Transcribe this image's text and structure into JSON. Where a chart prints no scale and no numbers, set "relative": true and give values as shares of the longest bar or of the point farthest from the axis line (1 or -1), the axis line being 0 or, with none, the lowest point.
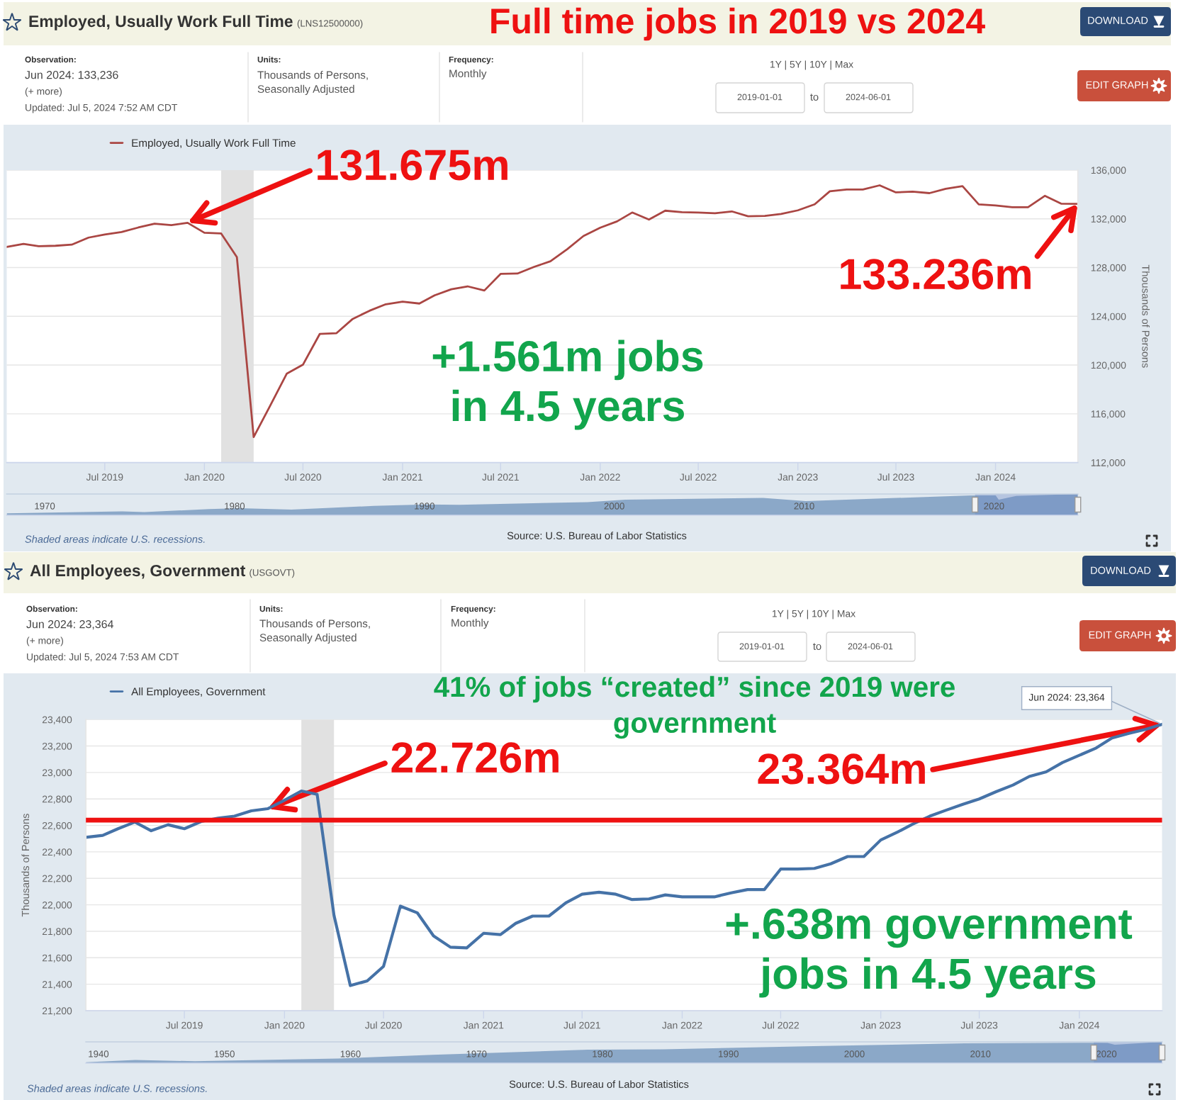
{
  "chart_data": [
    {
      "type": "line",
      "title": "Employed, Usually Work Full Time",
      "subtitle": "(LNS12500000)",
      "ylabel": "Thousands of Persons",
      "x": [
        "2019-01",
        "2019-02",
        "2019-03",
        "2019-04",
        "2019-05",
        "2019-06",
        "2019-07",
        "2019-08",
        "2019-09",
        "2019-10",
        "2019-11",
        "2019-12",
        "2020-01",
        "2020-02",
        "2020-03",
        "2020-04",
        "2020-05",
        "2020-06",
        "2020-07",
        "2020-08",
        "2020-09",
        "2020-10",
        "2020-11",
        "2020-12",
        "2021-01",
        "2021-02",
        "2021-03",
        "2021-04",
        "2021-05",
        "2021-06",
        "2021-07",
        "2021-08",
        "2021-09",
        "2021-10",
        "2021-11",
        "2021-12",
        "2022-01",
        "2022-02",
        "2022-03",
        "2022-04",
        "2022-05",
        "2022-06",
        "2022-07",
        "2022-08",
        "2022-09",
        "2022-10",
        "2022-11",
        "2022-12",
        "2023-01",
        "2023-02",
        "2023-03",
        "2023-04",
        "2023-05",
        "2023-06",
        "2023-07",
        "2023-08",
        "2023-09",
        "2023-10",
        "2023-11",
        "2023-12",
        "2024-01",
        "2024-02",
        "2024-03",
        "2024-04",
        "2024-05",
        "2024-06"
      ],
      "series": [
        {
          "name": "Employed, Usually Work Full Time",
          "color": "#aa4643",
          "values": [
            129690,
            129940,
            129750,
            129790,
            129880,
            130460,
            130710,
            130920,
            131290,
            131600,
            131480,
            131675,
            130860,
            130800,
            128860,
            114090,
            116620,
            119290,
            120030,
            122550,
            122620,
            123790,
            124460,
            124990,
            125200,
            125050,
            125720,
            126220,
            126460,
            126120,
            127480,
            127510,
            128060,
            128520,
            129510,
            130590,
            131270,
            131790,
            132520,
            131940,
            132670,
            132550,
            132520,
            132460,
            132610,
            132210,
            132240,
            132400,
            132700,
            133190,
            134260,
            134410,
            134410,
            134750,
            134170,
            134230,
            134110,
            134470,
            134680,
            133190,
            133100,
            132950,
            132950,
            133890,
            133250,
            133236
          ]
        }
      ],
      "xlim": [
        "2019-01-01",
        "2024-06-01"
      ],
      "xticks": [
        {
          "value": "2019-07-01",
          "label": "Jul 2019"
        },
        {
          "value": "2020-01-01",
          "label": "Jan 2020"
        },
        {
          "value": "2020-07-01",
          "label": "Jul 2020"
        },
        {
          "value": "2021-01-01",
          "label": "Jan 2021"
        },
        {
          "value": "2021-07-01",
          "label": "Jul 2021"
        },
        {
          "value": "2022-01-01",
          "label": "Jan 2022"
        },
        {
          "value": "2022-07-01",
          "label": "Jul 2022"
        },
        {
          "value": "2023-01-01",
          "label": "Jan 2023"
        },
        {
          "value": "2023-07-01",
          "label": "Jul 2023"
        },
        {
          "value": "2024-01-01",
          "label": "Jan 2024"
        }
      ],
      "ylim": [
        112000,
        136000
      ],
      "yticks": [
        {
          "value": 112000,
          "label": "112,000"
        },
        {
          "value": 116000,
          "label": "116,000"
        },
        {
          "value": 120000,
          "label": "120,000"
        },
        {
          "value": 124000,
          "label": "124,000"
        },
        {
          "value": 128000,
          "label": "128,000"
        },
        {
          "value": 132000,
          "label": "132,000"
        },
        {
          "value": 136000,
          "label": "136,000"
        }
      ],
      "grid": "y",
      "legend": "top left",
      "bands": [
        {
          "axis": "x",
          "from": "2020-02-01",
          "to": "2020-04-01",
          "color": "#e1e1e1"
        }
      ],
      "annotations": [
        "Full time jobs in 2019 vs 2024",
        "Observation:",
        "Jun 2024: 133,236",
        "(+ more)",
        "Updated: Jul 5, 2024 7:52 AM CDT",
        "Units:",
        "Thousands of Persons,\nSeasonally Adjusted",
        "Frequency:",
        "Monthly",
        "1Y | 5Y | 10Y | Max",
        "2019-01-01",
        "to",
        "2024-06-01",
        "DOWNLOAD",
        "EDIT GRAPH",
        {
          "text": "131.675m",
          "x": "2019-12",
          "y": 131675
        },
        {
          "text": "133.236m",
          "x": "2024-06",
          "y": 133236
        },
        "+1.561m jobs\nin 4.5 years",
        "Shaded areas indicate U.S. recessions.",
        "Source: U.S. Bureau of Labor Statistics"
      ]
    },
    {
      "type": "area",
      "relative": true,
      "tick_labels": "x",
      "x": [
        "1968-01",
        "1974-02",
        "1975-04",
        "1978-09",
        "1980-04",
        "1983-01",
        "1987-05",
        "1990-02",
        "1991-11",
        "1998-08",
        "2000-08",
        "2007-11",
        "2010-02",
        "2018-10",
        "2020-02",
        "2020-04",
        "2021-03",
        "2024-06"
      ],
      "series": [
        {
          "color": "#4572a7",
          "values": [
            0.09,
            0.18,
            0.15,
            0.29,
            0.33,
            0.27,
            0.44,
            0.51,
            0.49,
            0.62,
            0.73,
            0.82,
            0.67,
            0.93,
            0.93,
            0.73,
            0.91,
            1.0
          ]
        }
      ],
      "xlim": [
        "1968-01",
        "2024-06"
      ],
      "xticks": [
        {
          "value": "1970",
          "label": "1970"
        },
        {
          "value": "1980",
          "label": "1980"
        },
        {
          "value": "1990",
          "label": "1990"
        },
        {
          "value": "2000",
          "label": "2000"
        },
        {
          "value": "2010",
          "label": "2010"
        },
        {
          "value": "2020",
          "label": "2020"
        }
      ],
      "bands": [
        {
          "axis": "x",
          "from": "2019-01-01",
          "to": "2024-06-01",
          "color": "#6685c2"
        }
      ]
    },
    {
      "type": "line",
      "title": "All Employees, Government",
      "subtitle": "(USGOVT)",
      "ylabel": "Thousands of Persons",
      "x": [
        "2019-01",
        "2019-02",
        "2019-03",
        "2019-04",
        "2019-05",
        "2019-06",
        "2019-07",
        "2019-08",
        "2019-09",
        "2019-10",
        "2019-11",
        "2019-12",
        "2020-01",
        "2020-02",
        "2020-03",
        "2020-04",
        "2020-05",
        "2020-06",
        "2020-07",
        "2020-08",
        "2020-09",
        "2020-10",
        "2020-11",
        "2020-12",
        "2021-01",
        "2021-02",
        "2021-03",
        "2021-04",
        "2021-05",
        "2021-06",
        "2021-07",
        "2021-08",
        "2021-09",
        "2021-10",
        "2021-11",
        "2021-12",
        "2022-01",
        "2022-02",
        "2022-03",
        "2022-04",
        "2022-05",
        "2022-06",
        "2022-07",
        "2022-08",
        "2022-09",
        "2022-10",
        "2022-11",
        "2022-12",
        "2023-01",
        "2023-02",
        "2023-03",
        "2023-04",
        "2023-05",
        "2023-06",
        "2023-07",
        "2023-08",
        "2023-09",
        "2023-10",
        "2023-11",
        "2023-12",
        "2024-01",
        "2024-02",
        "2024-03",
        "2024-04",
        "2024-05",
        "2024-06"
      ],
      "series": [
        {
          "name": "All Employees, Government",
          "color": "#4572a7",
          "values": [
            22510,
            22525,
            22575,
            22625,
            22560,
            22605,
            22575,
            22630,
            22655,
            22670,
            22710,
            22726,
            22790,
            22860,
            22835,
            21920,
            21390,
            21425,
            21535,
            21990,
            21940,
            21765,
            21680,
            21675,
            21785,
            21775,
            21860,
            21915,
            21915,
            22015,
            22080,
            22095,
            22080,
            22040,
            22045,
            22075,
            22060,
            22060,
            22060,
            22090,
            22115,
            22115,
            22270,
            22270,
            22275,
            22310,
            22365,
            22365,
            22490,
            22550,
            22610,
            22670,
            22715,
            22760,
            22800,
            22855,
            22905,
            22970,
            23005,
            23075,
            23130,
            23185,
            23260,
            23295,
            23325,
            23364
          ]
        }
      ],
      "xlim": [
        "2019-01-01",
        "2024-06-01"
      ],
      "xticks": [
        {
          "value": "2019-07-01",
          "label": "Jul 2019"
        },
        {
          "value": "2020-01-01",
          "label": "Jan 2020"
        },
        {
          "value": "2020-07-01",
          "label": "Jul 2020"
        },
        {
          "value": "2021-01-01",
          "label": "Jan 2021"
        },
        {
          "value": "2021-07-01",
          "label": "Jul 2021"
        },
        {
          "value": "2022-01-01",
          "label": "Jan 2022"
        },
        {
          "value": "2022-07-01",
          "label": "Jul 2022"
        },
        {
          "value": "2023-01-01",
          "label": "Jan 2023"
        },
        {
          "value": "2023-07-01",
          "label": "Jul 2023"
        },
        {
          "value": "2024-01-01",
          "label": "Jan 2024"
        }
      ],
      "ylim": [
        21200,
        23400
      ],
      "yticks": [
        {
          "value": 21200,
          "label": "21,200"
        },
        {
          "value": 21400,
          "label": "21,400"
        },
        {
          "value": 21600,
          "label": "21,600"
        },
        {
          "value": 21800,
          "label": "21,800"
        },
        {
          "value": 22000,
          "label": "22,000"
        },
        {
          "value": 22200,
          "label": "22,200"
        },
        {
          "value": 22400,
          "label": "22,400"
        },
        {
          "value": 22600,
          "label": "22,600"
        },
        {
          "value": 22800,
          "label": "22,800"
        },
        {
          "value": 23000,
          "label": "23,000"
        },
        {
          "value": 23200,
          "label": "23,200"
        },
        {
          "value": 23400,
          "label": "23,400"
        }
      ],
      "grid": "y",
      "legend": "top left",
      "bands": [
        {
          "axis": "x",
          "from": "2020-02-01",
          "to": "2020-04-01",
          "color": "#e1e1e1"
        }
      ],
      "ref_lines": [
        {
          "axis": "y",
          "value": 22640,
          "color": "#ee1111"
        }
      ],
      "annotations": [
        "Observation:",
        "Jun 2024: 23,364",
        "(+ more)",
        "Updated: Jul 5, 2024 7:53 AM CDT",
        "Units:",
        "Thousands of Persons,\nSeasonally Adjusted",
        "Frequency:",
        "Monthly",
        "1Y | 5Y | 10Y | Max",
        "2019-01-01",
        "to",
        "2024-06-01",
        "DOWNLOAD",
        "EDIT GRAPH",
        "41% of jobs “created” since 2019 were\ngovernment",
        {
          "text": "22.726m",
          "x": "2019-12",
          "y": 22726
        },
        {
          "text": "23.364m",
          "x": "2024-06",
          "y": 23364
        },
        {
          "text": "Jun 2024: 23,364",
          "x": "2024-06",
          "y": 23364
        },
        "+.638m government\njobs in 4.5 years",
        "Shaded areas indicate U.S. recessions.",
        "Source: U.S. Bureau of Labor Statistics"
      ]
    },
    {
      "type": "area",
      "relative": true,
      "tick_labels": "x",
      "x": [
        "1939-01",
        "1942-12",
        "1947-09",
        "1959-01",
        "1966-07",
        "1978-11",
        "1984-11",
        "1996-10",
        "2008-10",
        "2019-01",
        "2020-02",
        "2020-09",
        "2024-06"
      ],
      "series": [
        {
          "color": "#4572a7",
          "values": [
            0.04,
            0.15,
            0.09,
            0.22,
            0.39,
            0.63,
            0.65,
            0.8,
            0.93,
            0.96,
            0.95,
            0.87,
            1.0
          ]
        }
      ],
      "xlim": [
        "1939-01",
        "2024-06"
      ],
      "xticks": [
        {
          "value": "1940",
          "label": "1940"
        },
        {
          "value": "1950",
          "label": "1950"
        },
        {
          "value": "1960",
          "label": "1960"
        },
        {
          "value": "1970",
          "label": "1970"
        },
        {
          "value": "1980",
          "label": "1980"
        },
        {
          "value": "1990",
          "label": "1990"
        },
        {
          "value": "2000",
          "label": "2000"
        },
        {
          "value": "2010",
          "label": "2010"
        },
        {
          "value": "2020",
          "label": "2020"
        }
      ],
      "bands": [
        {
          "axis": "x",
          "from": "2019-01-01",
          "to": "2024-06-01",
          "color": "#6685c2"
        }
      ]
    }
  ]
}
